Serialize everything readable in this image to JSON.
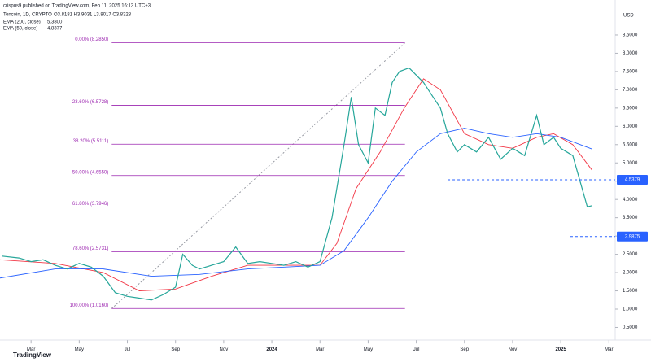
{
  "header": {
    "publisher": "crispus9 published on TradingView.com, Feb 11, 2025 16:13 UTC+3",
    "symbol": "Toncoin, 1D, CRYPTO",
    "ohlc": "O3.8181 H3.9031 L3.8017 C3.8328",
    "currency": "USD",
    "footer": "TradingView"
  },
  "chart_data": {
    "type": "line",
    "x": [
      -1.2,
      -0.5,
      0,
      0.5,
      1,
      1.5,
      2,
      2.5,
      3,
      3.5,
      4,
      4.5,
      5,
      5.5,
      6,
      6.3,
      6.7,
      7,
      7.5,
      8,
      8.5,
      9,
      9.5,
      10,
      10.5,
      11,
      11.5,
      12,
      12.5,
      13,
      13.3,
      13.6,
      14,
      14.3,
      14.7,
      15,
      15.3,
      15.7,
      16,
      16.3,
      16.7,
      17,
      17.3,
      17.7,
      18,
      18.5,
      19,
      19.5,
      20,
      20.5,
      21,
      21.3,
      21.7,
      22,
      22.5,
      22.8,
      23.1,
      23.3
    ],
    "series": [
      {
        "name": "Toncoin",
        "color": "#26a69a",
        "values": [
          2.45,
          2.4,
          2.3,
          2.35,
          2.2,
          2.1,
          2.25,
          2.15,
          1.9,
          1.45,
          1.35,
          1.3,
          1.25,
          1.4,
          1.6,
          2.5,
          2.2,
          2.1,
          2.2,
          2.3,
          2.7,
          2.25,
          2.3,
          2.25,
          2.2,
          2.3,
          2.15,
          2.3,
          3.5,
          5.5,
          6.8,
          5.5,
          5.0,
          6.5,
          6.3,
          7.2,
          7.5,
          7.6,
          7.4,
          7.2,
          6.8,
          6.5,
          5.8,
          5.3,
          5.5,
          5.3,
          5.7,
          5.1,
          5.4,
          5.2,
          6.3,
          5.5,
          5.7,
          5.4,
          5.2,
          4.5,
          3.8,
          3.83
        ]
      }
    ],
    "ema": [
      {
        "name": "EMA (50, close)",
        "last": "4.8377",
        "color": "#f23645",
        "x": [
          -1.3,
          1,
          3,
          4.5,
          6,
          7.5,
          9,
          11,
          12,
          12.7,
          13.5,
          14.5,
          15.5,
          16.3,
          17,
          18,
          19,
          20,
          21,
          21.7,
          22.5,
          23.3
        ],
        "values": [
          2.35,
          2.25,
          2.0,
          1.5,
          1.55,
          1.9,
          2.2,
          2.2,
          2.2,
          2.8,
          4.3,
          5.3,
          6.5,
          7.3,
          7.0,
          5.8,
          5.5,
          5.4,
          5.7,
          5.8,
          5.5,
          4.8
        ]
      },
      {
        "name": "EMA (200, close)",
        "last": "5.3800",
        "color": "#2962ff",
        "x": [
          -1.3,
          1,
          3,
          5,
          7,
          9,
          12,
          13,
          14,
          15,
          16,
          17,
          18,
          19,
          20,
          21,
          22,
          23.3
        ],
        "values": [
          1.85,
          2.1,
          2.1,
          1.9,
          1.95,
          2.1,
          2.2,
          2.6,
          3.5,
          4.5,
          5.3,
          5.8,
          5.95,
          5.8,
          5.7,
          5.8,
          5.7,
          5.38
        ]
      }
    ],
    "fib": {
      "x_start": 3.35,
      "x_end": 15.53,
      "color": "#9c27b0",
      "levels": [
        {
          "value": 8.285,
          "label": "0.00% (8.2850)"
        },
        {
          "value": 6.5728,
          "label": "23.60% (6.5728)"
        },
        {
          "value": 5.5111,
          "label": "38.20% (5.5111)"
        },
        {
          "value": 4.655,
          "label": "50.00% (4.6550)"
        },
        {
          "value": 3.7946,
          "label": "61.80% (3.7946)"
        },
        {
          "value": 2.5731,
          "label": "78.60% (2.5731)"
        },
        {
          "value": 1.016,
          "label": "100.00% (1.0160)"
        }
      ]
    },
    "levels": [
      {
        "value": 4.5379,
        "label": "4.5379",
        "x_start": 17.3
      },
      {
        "value": 2.9875,
        "label": "2.9875",
        "x_start": 22.4
      }
    ],
    "xlim": [
      -1.29,
      24.26
    ],
    "ylim": [
      0.15,
      9.0
    ],
    "xticks": [
      {
        "value": 0,
        "label": "Mar"
      },
      {
        "value": 2,
        "label": "May"
      },
      {
        "value": 4,
        "label": "Jul"
      },
      {
        "value": 6,
        "label": "Sep"
      },
      {
        "value": 8,
        "label": "Nov"
      },
      {
        "value": 10,
        "label": "2024"
      },
      {
        "value": 12,
        "label": "Mar"
      },
      {
        "value": 14,
        "label": "May"
      },
      {
        "value": 16,
        "label": "Jul"
      },
      {
        "value": 18,
        "label": "Sep"
      },
      {
        "value": 20,
        "label": "Nov"
      },
      {
        "value": 22,
        "label": "2025"
      },
      {
        "value": 24,
        "label": "Mar"
      }
    ],
    "yticks": [
      {
        "value": 0.5,
        "label": "0.5000"
      },
      {
        "value": 1,
        "label": "1.0000"
      },
      {
        "value": 1.5,
        "label": "1.5000"
      },
      {
        "value": 2,
        "label": "2.0000"
      },
      {
        "value": 2.5,
        "label": "2.5000"
      },
      {
        "value": 3,
        "label": "3.0000"
      },
      {
        "value": 3.5,
        "label": "3.5000"
      },
      {
        "value": 4,
        "label": "4.0000"
      },
      {
        "value": 4.5,
        "label": "4.5000"
      },
      {
        "value": 5,
        "label": "5.0000"
      },
      {
        "value": 5.5,
        "label": "5.5000"
      },
      {
        "value": 6,
        "label": "6.0000"
      },
      {
        "value": 6.5,
        "label": "6.5000"
      },
      {
        "value": 7,
        "label": "7.0000"
      },
      {
        "value": 7.5,
        "label": "7.5000"
      },
      {
        "value": 8,
        "label": "8.0000"
      },
      {
        "value": 8.5,
        "label": "8.5000"
      }
    ]
  }
}
